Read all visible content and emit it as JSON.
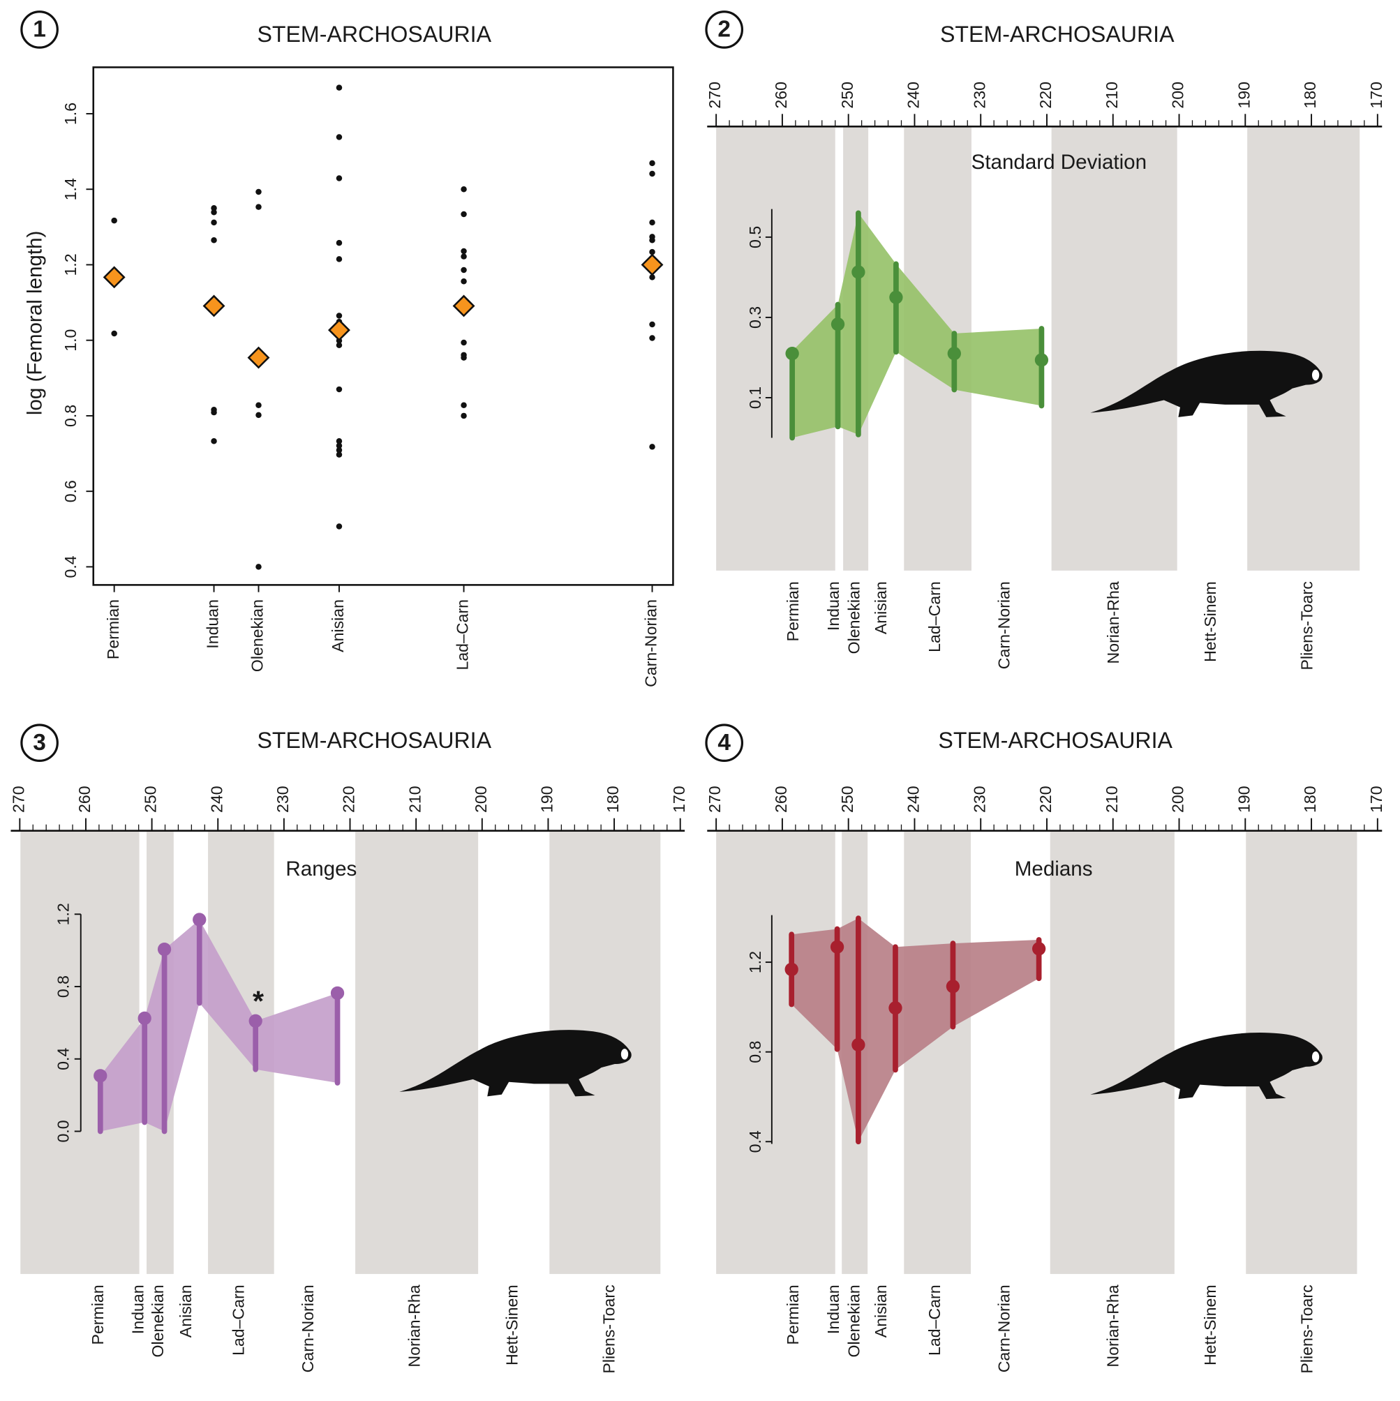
{
  "chart_data": [
    {
      "type": "strip",
      "panel_label": "1",
      "title": "STEM-ARCHOSAURIA",
      "y_label": "log (Femoral length)",
      "categories": [
        "Permian",
        "Induan",
        "Olenekian",
        "Anisian",
        "Lad–Carn",
        "Carn-Norian"
      ],
      "points": [
        [
          1.317,
          1.018
        ],
        [
          1.35,
          1.339,
          1.312,
          1.265,
          0.816,
          0.809,
          0.733
        ],
        [
          1.393,
          1.353,
          0.828,
          0.802,
          0.4
        ],
        [
          1.669,
          1.538,
          1.429,
          1.258,
          1.215,
          1.065,
          1.049,
          0.999,
          0.987,
          0.87,
          0.733,
          0.721,
          0.709,
          0.697,
          0.507
        ],
        [
          1.4,
          1.334,
          1.236,
          1.222,
          1.186,
          1.156,
          0.994,
          0.961,
          0.954,
          0.828,
          0.8
        ],
        [
          1.469,
          1.441,
          1.312,
          1.274,
          1.265,
          1.234,
          1.167,
          1.042,
          1.006,
          0.718
        ]
      ],
      "means": [
        1.167,
        1.091,
        0.954,
        1.027,
        1.091,
        1.2
      ],
      "point_color": "#111111",
      "mean_color": "#f7941d",
      "ylim": [
        0.352,
        1.723
      ],
      "yticks": [
        0.4,
        0.6,
        0.8,
        {
          "value": 1,
          "label": "1.0"
        },
        1.2,
        1.4,
        1.6
      ]
    },
    {
      "type": "interval",
      "panel_label": "2",
      "title": "STEM-ARCHOSAURIA",
      "subtitle": "Standard Deviation",
      "xlim": [
        270,
        170
      ],
      "xticks": [
        270,
        260,
        250,
        240,
        230,
        220,
        210,
        200,
        190,
        180,
        170
      ],
      "xminor_step": 2,
      "bands": [
        [
          270,
          252
        ],
        [
          250.8,
          247
        ],
        [
          241.6,
          231.4
        ],
        [
          219.3,
          200.3
        ],
        [
          189.7,
          172.7
        ]
      ],
      "band_color": "#dedbd8",
      "categories": [
        "Permian",
        "Induan",
        "Olenekian",
        "Anisian",
        "Lad–Carn",
        "Carn-Norian",
        "Norian-Rha",
        "Hett-Sinem",
        "Pliens-Toarc"
      ],
      "category_x": [
        258.2,
        252.1,
        249,
        244.9,
        236.8,
        226.3,
        209.8,
        195.1,
        180.5
      ],
      "x": [
        258.5,
        251.6,
        248.5,
        242.8,
        234,
        220.8
      ],
      "values": [
        0.21,
        0.283,
        0.413,
        0.35,
        0.21,
        0.194
      ],
      "lower": [
        0,
        0.028,
        0.008,
        0.214,
        0.12,
        0.08
      ],
      "upper": [
        0.216,
        0.332,
        0.56,
        0.433,
        0.26,
        0.272
      ],
      "color": "#4a8f3a",
      "fill": "#97c26a",
      "ylim": [
        0,
        0.57
      ],
      "yticks": [
        0.1,
        0.3,
        0.5
      ]
    },
    {
      "type": "interval",
      "panel_label": "3",
      "title": "STEM-ARCHOSAURIA",
      "subtitle": "Ranges",
      "xlim": [
        270,
        170
      ],
      "xticks": [
        270,
        260,
        250,
        240,
        230,
        220,
        210,
        200,
        190,
        180,
        170
      ],
      "xminor_step": 2,
      "bands": [
        [
          269.9,
          251.9
        ],
        [
          250.8,
          246.7
        ],
        [
          241.5,
          231.5
        ],
        [
          219.2,
          200.6
        ],
        [
          189.8,
          173
        ]
      ],
      "band_color": "#dedbd8",
      "categories": [
        "Permian",
        "Induan",
        "Olenekian",
        "Anisian",
        "Lad–Carn",
        "Carn-Norian",
        "Norian-Rha",
        "Hett-Sinem",
        "Pliens-Toarc"
      ],
      "category_x": [
        258,
        251.9,
        248.9,
        244.7,
        236.7,
        226.2,
        210.1,
        195.3,
        180.6
      ],
      "x": [
        257.8,
        251.1,
        248.1,
        242.8,
        234.3,
        221.9
      ],
      "values": [
        0.307,
        0.625,
        1.006,
        1.17,
        0.61,
        0.764
      ],
      "lower": [
        0,
        0.05,
        0,
        0.709,
        0.342,
        0.268
      ],
      "annotations": [
        {
          "text": "*",
          "x": 234.3,
          "y": 0.61
        }
      ],
      "color": "#9b5faa",
      "fill": "#c49fcb",
      "ylim": [
        0,
        1.2
      ],
      "yticks": [
        {
          "value": 0,
          "label": "0.0"
        },
        0.4,
        0.8,
        1.2
      ]
    },
    {
      "type": "interval",
      "panel_label": "4",
      "title": "STEM-ARCHOSAURIA",
      "subtitle": "Medians",
      "xlim": [
        270,
        170
      ],
      "xticks": [
        270,
        260,
        250,
        240,
        230,
        220,
        210,
        200,
        190,
        180,
        170
      ],
      "xminor_step": 2,
      "bands": [
        [
          270,
          252
        ],
        [
          251,
          247.1
        ],
        [
          241.6,
          231.5
        ],
        [
          219.5,
          200.7
        ],
        [
          189.9,
          173.1
        ]
      ],
      "band_color": "#dedbd8",
      "categories": [
        "Permian",
        "Induan",
        "Olenekian",
        "Anisian",
        "Lad–Carn",
        "Carn-Norian",
        "Norian-Rha",
        "Hett-Sinem",
        "Pliens-Toarc"
      ],
      "category_x": [
        258.2,
        252.1,
        249,
        244.9,
        236.8,
        226.3,
        209.8,
        195.1,
        180.5
      ],
      "x": [
        258.6,
        251.7,
        248.5,
        242.9,
        234.2,
        221.2
      ],
      "values": [
        1.168,
        1.268,
        0.832,
        0.996,
        1.092,
        1.26
      ],
      "lower": [
        1.012,
        0.812,
        0.4,
        0.72,
        0.912,
        1.128
      ],
      "upper": [
        1.324,
        1.348,
        1.396,
        1.268,
        1.284,
        1.3
      ],
      "color": "#a8202e",
      "fill": "#b88088",
      "ylim": [
        0.39,
        1.41
      ],
      "yticks": [
        0.4,
        0.8,
        1.2
      ]
    }
  ]
}
